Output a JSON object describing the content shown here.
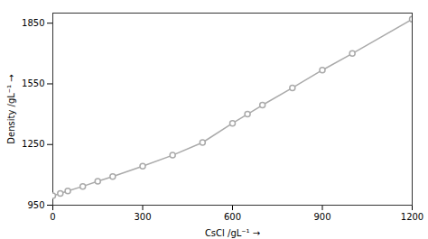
{
  "chart_data": {
    "type": "line",
    "xlabel": "CsCl /gL⁻¹",
    "ylabel": "Density /gL⁻¹",
    "x": [
      0,
      25,
      50,
      100,
      150,
      200,
      300,
      400,
      500,
      600,
      650,
      700,
      800,
      900,
      1000,
      1200
    ],
    "values": [
      997,
      1008,
      1020,
      1043,
      1068,
      1092,
      1143,
      1197,
      1260,
      1355,
      1400,
      1445,
      1530,
      1618,
      1700,
      1870
    ],
    "xlim": [
      0,
      1200
    ],
    "ylim": [
      950,
      1900
    ],
    "xticks": [
      0,
      300,
      600,
      900,
      1200
    ],
    "yticks": [
      950,
      1250,
      1550,
      1850
    ],
    "color": "#aaaaaa",
    "marker": "circle",
    "grid": false
  }
}
